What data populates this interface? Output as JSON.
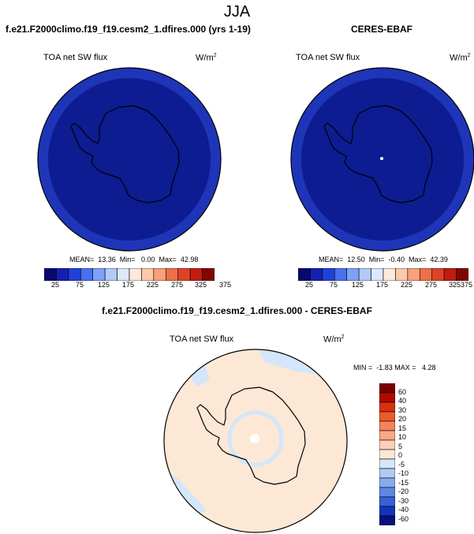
{
  "figure": {
    "season": "JJA"
  },
  "panels": {
    "model": {
      "title": "f.e21.F2000climo.f19_f19.cesm2_1.dfires.000 (yrs 1-19)",
      "variable": "TOA net SW flux",
      "units_base": "W/m",
      "units_exp": "2",
      "stats": "MEAN=  13.36  Min=   0.00  Max=  42.98",
      "colorbar_labels": [
        "25",
        "75",
        "125",
        "175",
        "225",
        "275",
        "325",
        "375"
      ]
    },
    "obs": {
      "title": "CERES-EBAF",
      "variable": "TOA net SW flux",
      "units_base": "W/m",
      "units_exp": "2",
      "stats": "MEAN=  12.50  Min=  -0.40  Max=  42.39",
      "colorbar_labels": [
        "25",
        "75",
        "125",
        "175",
        "225",
        "275",
        "325",
        "375"
      ]
    },
    "diff": {
      "title": "f.e21.F2000climo.f19_f19.cesm2_1.dfires.000 - CERES-EBAF",
      "variable": "TOA net SW flux",
      "units_base": "W/m",
      "units_exp": "2",
      "stats": "MIN =  -1.83 MAX =   4.28",
      "colorbar_labels": [
        "60",
        "40",
        "30",
        "20",
        "15",
        "10",
        "5",
        "0",
        "-5",
        "-10",
        "-15",
        "-20",
        "-30",
        "-40",
        "-60"
      ]
    }
  },
  "colors": {
    "seq_bar": [
      "#08086e",
      "#1520b0",
      "#2040d8",
      "#4a70ee",
      "#7ea0f6",
      "#b0cafa",
      "#dce8fc",
      "#fde8de",
      "#fcc8ac",
      "#f8a07a",
      "#ee7048",
      "#de4226",
      "#c01c10",
      "#800600"
    ],
    "div_bar": [
      "#7a0000",
      "#b00a00",
      "#d8320c",
      "#ec5a2c",
      "#f4825a",
      "#f9a888",
      "#fcd0b8",
      "#fde8d8",
      "#d4e8fa",
      "#b0ccf4",
      "#88acec",
      "#5c88e4",
      "#3460d8",
      "#1434b8",
      "#08107a"
    ],
    "map_deep": "#0d1c91",
    "map_ring": "#1e35b8",
    "diff_bg": "#fde8d6",
    "diff_blue": "#d4e6fa"
  }
}
